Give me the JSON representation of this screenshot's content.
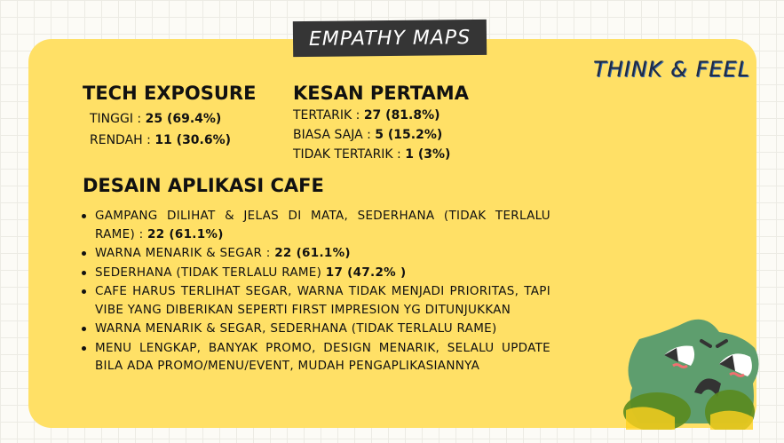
{
  "header": {
    "title": "EMPATHY MAPS",
    "section": "THINK & FEEL"
  },
  "tech": {
    "heading": "TECH EXPOSURE",
    "rows": [
      {
        "label": "TINGGI  : ",
        "value": "25 (69.4%)"
      },
      {
        "label": "RENDAH : ",
        "value": "11 (30.6%)"
      }
    ]
  },
  "kesan": {
    "heading": "KESAN PERTAMA",
    "rows": [
      {
        "label": "TERTARIK : ",
        "value": "27 (81.8%)"
      },
      {
        "label": "BIASA SAJA : ",
        "value": "5 (15.2%)"
      },
      {
        "label": "TIDAK TERTARIK : ",
        "value": "1  (3%)"
      }
    ]
  },
  "desain": {
    "heading": "DESAIN APLIKASI CAFE",
    "items": [
      {
        "text": "GAMPANG DILIHAT & JELAS DI MATA, SEDERHANA (TIDAK TERLALU RAME)  : ",
        "value": "22 (61.1%)"
      },
      {
        "text": "WARNA MENARIK & SEGAR : ",
        "value": "22 (61.1%)"
      },
      {
        "text": "SEDERHANA (TIDAK TERLALU RAME) ",
        "value": "17 (47.2% )"
      },
      {
        "text": "CAFE HARUS TERLIHAT SEGAR, WARNA TIDAK MENJADI PRIORITAS, TAPI VIBE YANG DIBERIKAN SEPERTI FIRST IMPRESION YG DITUNJUKKAN",
        "value": ""
      },
      {
        "text": "WARNA MENARIK & SEGAR, SEDERHANA (TIDAK TERLALU RAME)",
        "value": ""
      },
      {
        "text": "MENU LENGKAP, BANYAK PROMO, DESIGN MENARIK, SELALU UPDATE BILA ADA PROMO/MENU/EVENT, MUDAH PENGAPLIKASIANNYA",
        "value": ""
      }
    ]
  },
  "colors": {
    "card": "#ffe066",
    "title_bg": "#353535",
    "mascot": "#5e9e6e"
  }
}
